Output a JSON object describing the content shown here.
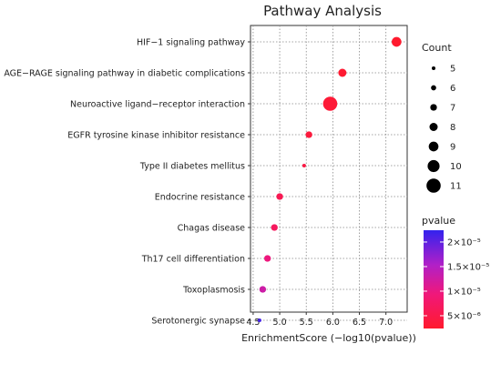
{
  "chart_data": {
    "type": "scatter",
    "title": "Pathway Analysis",
    "xlabel": "EnrichmentScore (−log10(pvalue))",
    "ylabel": "",
    "xlim": [
      4.45,
      7.4
    ],
    "xticks": [
      "4.5",
      "5.0",
      "5.5",
      "6.0",
      "6.5",
      "7.0"
    ],
    "grid": true,
    "categories": [
      "HIF−1 signaling pathway",
      "AGE−RAGE signaling pathway in diabetic complications",
      "Neuroactive ligand−receptor interaction",
      "EGFR tyrosine kinase inhibitor resistance",
      "Type II diabetes mellitus",
      "Endocrine resistance",
      "Chagas disease",
      "Th17 cell differentiation",
      "Toxoplasmosis",
      "Serotonergic synapse"
    ],
    "x": [
      7.2,
      6.18,
      5.95,
      5.55,
      5.46,
      5.0,
      4.9,
      4.77,
      4.68,
      4.62
    ],
    "count": [
      9,
      8,
      11,
      7,
      5,
      7,
      7,
      7,
      7,
      5
    ],
    "pvalue_rel": [
      0.0,
      0.02,
      0.04,
      0.07,
      0.1,
      0.17,
      0.22,
      0.36,
      0.52,
      0.95
    ],
    "size_legend": {
      "title": "Count",
      "labels": [
        "5",
        "6",
        "7",
        "8",
        "9",
        "10",
        "11"
      ],
      "values": [
        5,
        6,
        7,
        8,
        9,
        10,
        11
      ]
    },
    "color_legend": {
      "title": "pvalue",
      "labels": [
        "2×10⁻⁵",
        "1.5×10⁻⁵",
        "1×10⁻⁵",
        "5×10⁻⁶"
      ],
      "positions": [
        0.88,
        0.63,
        0.38,
        0.13
      ],
      "colors": [
        "#ff1a2e",
        "#3322ee"
      ]
    }
  }
}
